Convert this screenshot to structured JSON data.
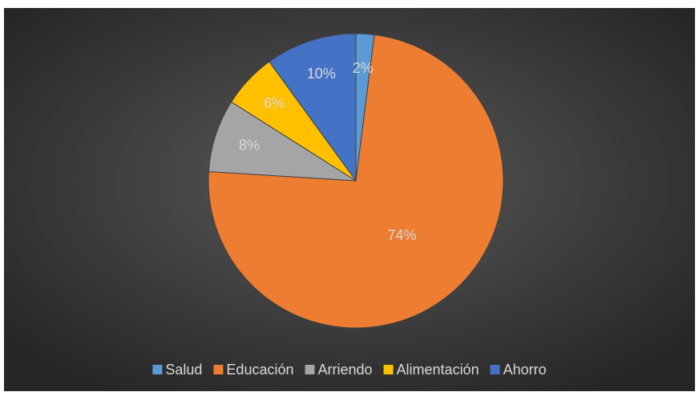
{
  "chart_data": {
    "type": "pie",
    "categories": [
      "Salud",
      "Educación",
      "Arriendo",
      "Alimentación",
      "Ahorro"
    ],
    "values": [
      2,
      74,
      8,
      6,
      10
    ],
    "value_labels": [
      "2%",
      "74%",
      "8%",
      "6%",
      "10%"
    ],
    "colors": [
      "#5b9bd5",
      "#ed7d31",
      "#a5a5a5",
      "#ffc000",
      "#4472c4"
    ],
    "legend": "bottom"
  }
}
